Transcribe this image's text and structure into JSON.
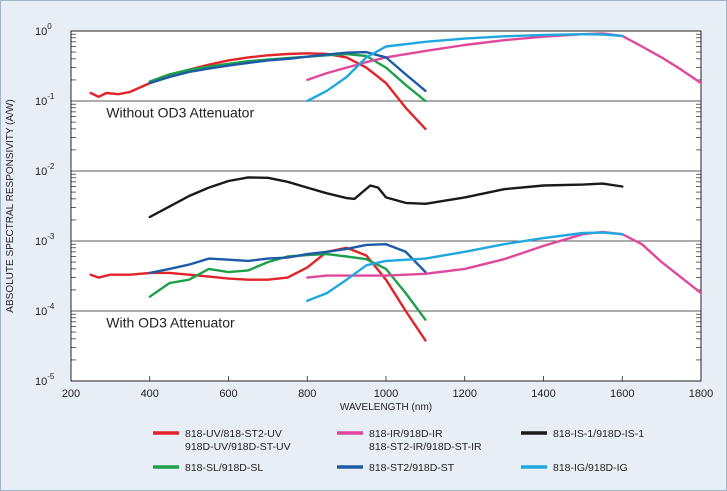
{
  "chart_data": {
    "type": "line",
    "title": "",
    "xlabel": "WAVELENGTH (nm)",
    "ylabel": "ABSOLUTE SPECTRAL RESPONSIVITY (A/W)",
    "xlim": [
      200,
      1800
    ],
    "ylim": [
      1e-05,
      1
    ],
    "yscale": "log",
    "grid": "horizontal at decades",
    "legend_position": "bottom",
    "x_ticks": [
      "200",
      "400",
      "600",
      "800",
      "1000",
      "1200",
      "1400",
      "1600",
      "1800"
    ],
    "y_ticks": [
      {
        "base": "10",
        "exp": "0",
        "value": 1
      },
      {
        "base": "10",
        "exp": "-1",
        "value": 0.1
      },
      {
        "base": "10",
        "exp": "-2",
        "value": 0.01
      },
      {
        "base": "10",
        "exp": "-3",
        "value": 0.001
      },
      {
        "base": "10",
        "exp": "-4",
        "value": 0.0001
      },
      {
        "base": "10",
        "exp": "-5",
        "value": 1e-05
      }
    ],
    "annotations": [
      {
        "text": "Without OD3 Attenuator",
        "x": 320,
        "y": 0.068
      },
      {
        "text": "With OD3 Attenuator",
        "x": 320,
        "y": 6.8e-05
      }
    ],
    "series": [
      {
        "name": "818-UV/818-ST2-UV",
        "name2": "918D-UV/918D-ST-UV",
        "color": "#e2232a",
        "legend": true,
        "points": [
          [
            250,
            0.13
          ],
          [
            270,
            0.115
          ],
          [
            290,
            0.13
          ],
          [
            320,
            0.125
          ],
          [
            350,
            0.135
          ],
          [
            400,
            0.18
          ],
          [
            450,
            0.23
          ],
          [
            500,
            0.28
          ],
          [
            550,
            0.33
          ],
          [
            600,
            0.38
          ],
          [
            650,
            0.42
          ],
          [
            700,
            0.45
          ],
          [
            750,
            0.47
          ],
          [
            800,
            0.48
          ],
          [
            850,
            0.47
          ],
          [
            900,
            0.42
          ],
          [
            950,
            0.3
          ],
          [
            1000,
            0.18
          ],
          [
            1050,
            0.08
          ],
          [
            1100,
            0.04
          ]
        ]
      },
      {
        "name": "818-SL/918D-SL",
        "color": "#1ea04a",
        "legend": true,
        "points": [
          [
            400,
            0.19
          ],
          [
            450,
            0.24
          ],
          [
            500,
            0.28
          ],
          [
            550,
            0.31
          ],
          [
            600,
            0.34
          ],
          [
            650,
            0.37
          ],
          [
            700,
            0.39
          ],
          [
            750,
            0.41
          ],
          [
            800,
            0.43
          ],
          [
            850,
            0.45
          ],
          [
            900,
            0.47
          ],
          [
            950,
            0.44
          ],
          [
            1000,
            0.3
          ],
          [
            1050,
            0.17
          ],
          [
            1100,
            0.1
          ]
        ]
      },
      {
        "name": "818-IR/918D-IR",
        "name2": "818-ST2-IR/918D-ST-IR",
        "color": "#e0489c",
        "legend": true,
        "points": [
          [
            800,
            0.2
          ],
          [
            850,
            0.25
          ],
          [
            900,
            0.3
          ],
          [
            950,
            0.36
          ],
          [
            1000,
            0.42
          ],
          [
            1100,
            0.52
          ],
          [
            1200,
            0.63
          ],
          [
            1300,
            0.74
          ],
          [
            1400,
            0.83
          ],
          [
            1500,
            0.9
          ],
          [
            1550,
            0.92
          ],
          [
            1600,
            0.85
          ],
          [
            1650,
            0.6
          ],
          [
            1700,
            0.42
          ],
          [
            1750,
            0.28
          ],
          [
            1800,
            0.18
          ]
        ]
      },
      {
        "name": "818-ST2/918D-ST",
        "color": "#1d5aa6",
        "legend": true,
        "points": [
          [
            400,
            0.18
          ],
          [
            450,
            0.22
          ],
          [
            500,
            0.26
          ],
          [
            550,
            0.29
          ],
          [
            600,
            0.32
          ],
          [
            650,
            0.35
          ],
          [
            700,
            0.38
          ],
          [
            750,
            0.4
          ],
          [
            800,
            0.43
          ],
          [
            850,
            0.46
          ],
          [
            900,
            0.49
          ],
          [
            950,
            0.5
          ],
          [
            1000,
            0.42
          ],
          [
            1050,
            0.24
          ],
          [
            1100,
            0.14
          ]
        ]
      },
      {
        "name": "818-IS-1/918D-IS-1",
        "color": "#1a1a1a",
        "legend": true,
        "points": [
          [
            400,
            0.0022
          ],
          [
            450,
            0.0031
          ],
          [
            500,
            0.0044
          ],
          [
            550,
            0.0058
          ],
          [
            600,
            0.0072
          ],
          [
            650,
            0.0081
          ],
          [
            700,
            0.008
          ],
          [
            750,
            0.007
          ],
          [
            800,
            0.0058
          ],
          [
            850,
            0.0048
          ],
          [
            900,
            0.0041
          ],
          [
            920,
            0.004
          ],
          [
            940,
            0.005
          ],
          [
            960,
            0.0062
          ],
          [
            980,
            0.0058
          ],
          [
            1000,
            0.0042
          ],
          [
            1050,
            0.0035
          ],
          [
            1100,
            0.0034
          ],
          [
            1200,
            0.0042
          ],
          [
            1300,
            0.0055
          ],
          [
            1400,
            0.0062
          ],
          [
            1500,
            0.0064
          ],
          [
            1550,
            0.0066
          ],
          [
            1600,
            0.006
          ]
        ]
      },
      {
        "name": "818-IG/918D-IG",
        "color": "#1fa8e0",
        "legend": true,
        "points": [
          [
            800,
            0.1
          ],
          [
            850,
            0.14
          ],
          [
            900,
            0.22
          ],
          [
            950,
            0.42
          ],
          [
            1000,
            0.6
          ],
          [
            1100,
            0.7
          ],
          [
            1200,
            0.78
          ],
          [
            1300,
            0.84
          ],
          [
            1400,
            0.88
          ],
          [
            1500,
            0.9
          ],
          [
            1550,
            0.89
          ],
          [
            1600,
            0.85
          ]
        ]
      },
      {
        "name": "",
        "color": "#e2232a",
        "legend": false,
        "points": [
          [
            250,
            0.00033
          ],
          [
            270,
            0.0003
          ],
          [
            300,
            0.00033
          ],
          [
            350,
            0.00033
          ],
          [
            400,
            0.00035
          ],
          [
            450,
            0.00035
          ],
          [
            500,
            0.00033
          ],
          [
            550,
            0.00031
          ],
          [
            600,
            0.00029
          ],
          [
            650,
            0.00028
          ],
          [
            700,
            0.00028
          ],
          [
            750,
            0.0003
          ],
          [
            800,
            0.00042
          ],
          [
            850,
            0.0007
          ],
          [
            900,
            0.0008
          ],
          [
            950,
            0.00062
          ],
          [
            1000,
            0.00028
          ],
          [
            1050,
            0.0001
          ],
          [
            1100,
            3.8e-05
          ]
        ]
      },
      {
        "name": "",
        "color": "#1ea04a",
        "legend": false,
        "points": [
          [
            400,
            0.00016
          ],
          [
            450,
            0.00025
          ],
          [
            500,
            0.00028
          ],
          [
            550,
            0.0004
          ],
          [
            600,
            0.00036
          ],
          [
            650,
            0.00038
          ],
          [
            700,
            0.0005
          ],
          [
            750,
            0.0006
          ],
          [
            800,
            0.00063
          ],
          [
            850,
            0.00065
          ],
          [
            900,
            0.0006
          ],
          [
            950,
            0.00055
          ],
          [
            1000,
            0.0004
          ],
          [
            1050,
            0.00018
          ],
          [
            1100,
            7.5e-05
          ]
        ]
      },
      {
        "name": "",
        "color": "#1d5aa6",
        "legend": false,
        "points": [
          [
            400,
            0.00035
          ],
          [
            450,
            0.0004
          ],
          [
            500,
            0.00046
          ],
          [
            550,
            0.00056
          ],
          [
            600,
            0.00054
          ],
          [
            650,
            0.00052
          ],
          [
            700,
            0.00056
          ],
          [
            750,
            0.00058
          ],
          [
            800,
            0.00065
          ],
          [
            850,
            0.0007
          ],
          [
            900,
            0.00077
          ],
          [
            950,
            0.00088
          ],
          [
            1000,
            0.0009
          ],
          [
            1050,
            0.0007
          ],
          [
            1100,
            0.00036
          ]
        ]
      },
      {
        "name": "",
        "color": "#e0489c",
        "legend": false,
        "points": [
          [
            800,
            0.0003
          ],
          [
            850,
            0.00032
          ],
          [
            900,
            0.00032
          ],
          [
            1000,
            0.00032
          ],
          [
            1100,
            0.00034
          ],
          [
            1200,
            0.0004
          ],
          [
            1300,
            0.00055
          ],
          [
            1400,
            0.00085
          ],
          [
            1500,
            0.00125
          ],
          [
            1550,
            0.00135
          ],
          [
            1600,
            0.00125
          ],
          [
            1650,
            0.0009
          ],
          [
            1700,
            0.0005
          ],
          [
            1750,
            0.0003
          ],
          [
            1800,
            0.00018
          ]
        ]
      },
      {
        "name": "",
        "color": "#1fa8e0",
        "legend": false,
        "points": [
          [
            800,
            0.00014
          ],
          [
            850,
            0.00018
          ],
          [
            900,
            0.00028
          ],
          [
            950,
            0.00045
          ],
          [
            1000,
            0.00052
          ],
          [
            1100,
            0.00056
          ],
          [
            1200,
            0.0007
          ],
          [
            1300,
            0.0009
          ],
          [
            1400,
            0.0011
          ],
          [
            1500,
            0.0013
          ],
          [
            1550,
            0.00132
          ],
          [
            1600,
            0.00125
          ]
        ]
      }
    ]
  }
}
